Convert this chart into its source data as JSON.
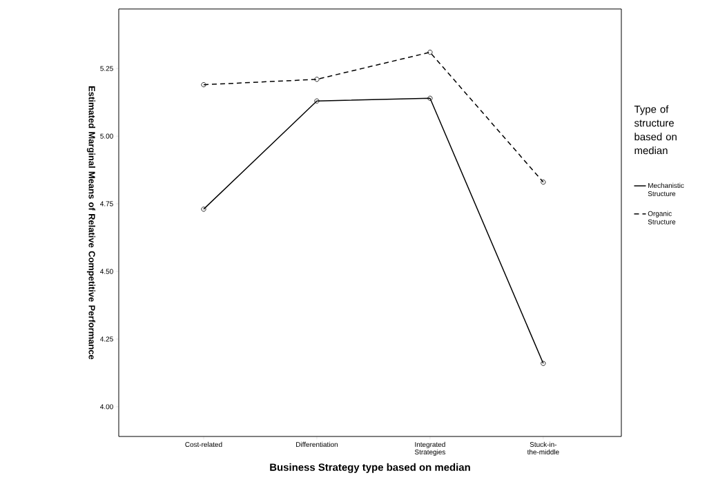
{
  "chart_data": {
    "type": "line",
    "xlabel": "Business Strategy type based on median",
    "ylabel": "Estimated Marginal Means of Relative Competitive Performance",
    "legend_title": "Type of structure based on median",
    "categories": [
      "Cost-related",
      "Differentiation",
      "Integrated Strategies",
      "Stuck-in-the-middle"
    ],
    "series": [
      {
        "name": "Mechanistic Structure",
        "color": "#000000",
        "line_style": "solid",
        "values": [
          4.73,
          5.13,
          5.14,
          4.16
        ]
      },
      {
        "name": "Organic Structure",
        "color": "#000000",
        "line_style": "dashed",
        "values": [
          5.19,
          5.21,
          5.31,
          4.83
        ]
      }
    ],
    "ylim": [
      3.89,
      5.47
    ],
    "yticks": [
      {
        "value": 4.0,
        "label": "4.00"
      },
      {
        "value": 4.25,
        "label": "4.25"
      },
      {
        "value": 4.5,
        "label": "4.50"
      },
      {
        "value": 4.75,
        "label": "4.75"
      },
      {
        "value": 5.0,
        "label": "5.00"
      },
      {
        "value": 5.25,
        "label": "5.25"
      }
    ],
    "marker": "circle",
    "grid": false,
    "legend": "right"
  }
}
